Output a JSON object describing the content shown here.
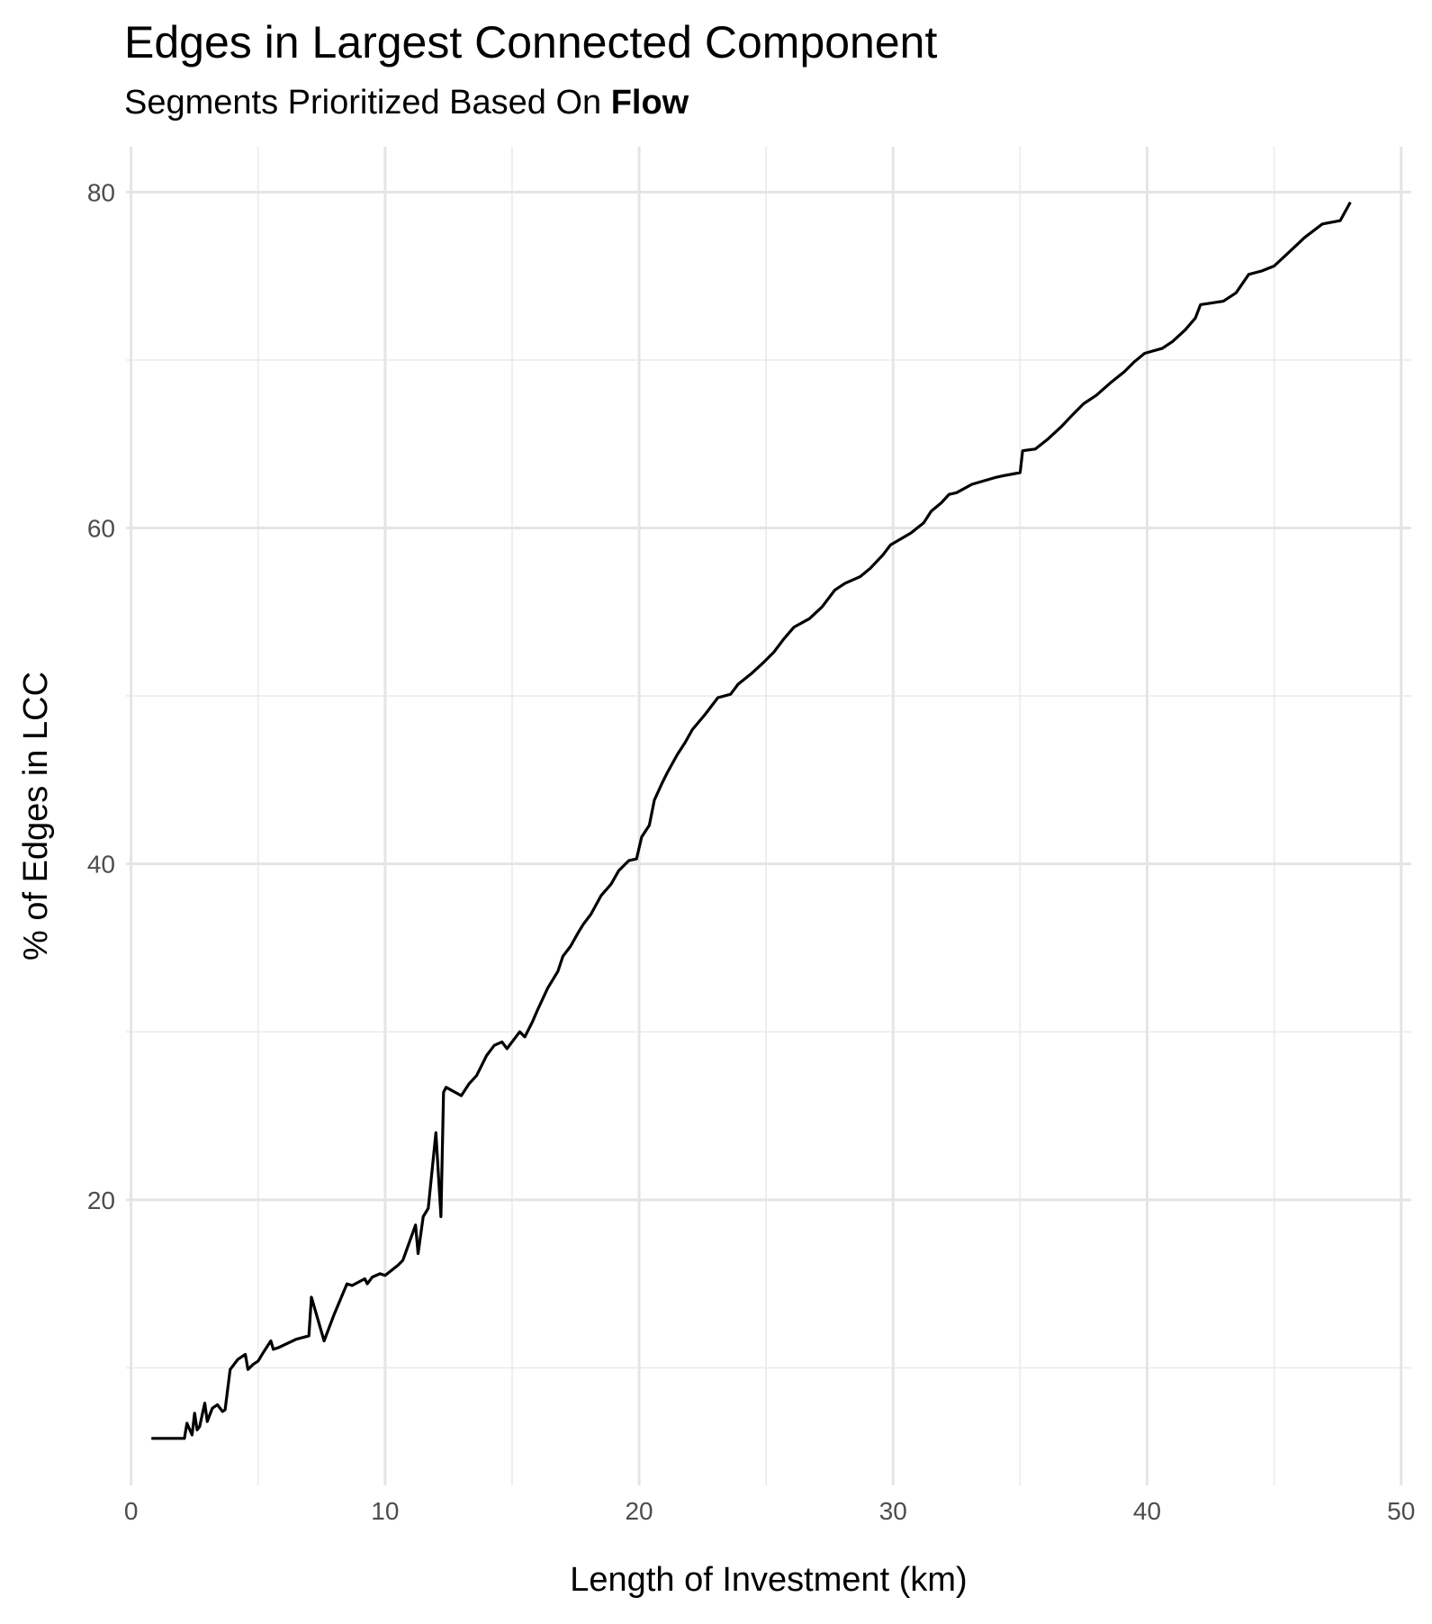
{
  "chart_data": {
    "type": "line",
    "title": "Edges in Largest Connected Component",
    "subtitle": {
      "prefix": "Segments Prioritized Based On ",
      "emphasis": "Flow"
    },
    "xlabel": "Length of Investment (km)",
    "ylabel": "% of Edges in LCC",
    "xlim": [
      -0.2,
      50.4
    ],
    "ylim": [
      3.0,
      82.7
    ],
    "xticks": [
      0,
      10,
      20,
      30,
      40,
      50
    ],
    "yticks": [
      20,
      40,
      60,
      80
    ],
    "grid": true,
    "legend": "none",
    "line_color": "#000000",
    "series": [
      {
        "x": [
          0.8,
          1.6,
          2.1,
          2.2,
          2.4,
          2.5,
          2.6,
          2.7,
          2.9,
          3.0,
          3.1,
          3.2,
          3.4,
          3.6,
          3.7,
          3.9,
          4.2,
          4.5,
          4.6,
          4.8,
          5.0,
          5.2,
          5.5,
          5.6,
          5.8,
          6.5,
          7.0,
          7.1,
          7.6,
          8.0,
          8.5,
          8.7,
          9.2,
          9.3,
          9.5,
          9.8,
          10.0,
          10.5,
          10.7,
          11.2,
          11.3,
          11.5,
          11.7,
          12.0,
          12.2,
          12.3,
          12.4,
          13.0,
          13.3,
          13.6,
          14.0,
          14.3,
          14.6,
          14.8,
          15.3,
          15.5,
          15.8,
          16.0,
          16.4,
          16.8,
          17.0,
          17.3,
          17.6,
          17.8,
          18.1,
          18.5,
          18.9,
          19.2,
          19.6,
          19.9,
          20.1,
          20.4,
          20.6,
          20.9,
          21.1,
          21.5,
          21.8,
          22.1,
          22.6,
          23.1,
          23.6,
          23.9,
          24.4,
          24.9,
          25.3,
          25.7,
          26.1,
          26.7,
          27.2,
          27.7,
          28.1,
          28.7,
          29.1,
          29.6,
          29.9,
          30.7,
          31.2,
          31.5,
          31.9,
          32.2,
          32.5,
          33.1,
          34.0,
          34.3,
          35.0,
          35.1,
          35.6,
          36.1,
          36.6,
          37.1,
          37.5,
          38.0,
          38.6,
          39.1,
          39.5,
          39.9,
          40.6,
          41.0,
          41.5,
          41.9,
          42.1,
          43.0,
          43.5,
          44.0,
          44.5,
          45.0,
          45.5,
          46.2,
          46.9,
          47.6,
          48.0
        ],
        "y": [
          5.8,
          5.8,
          5.8,
          6.7,
          6.0,
          7.3,
          6.3,
          6.5,
          7.9,
          6.8,
          7.2,
          7.6,
          7.8,
          7.4,
          7.5,
          9.9,
          10.5,
          10.8,
          9.9,
          10.2,
          10.4,
          10.9,
          11.6,
          11.1,
          11.2,
          11.7,
          11.9,
          14.2,
          11.6,
          13.2,
          15.0,
          14.9,
          15.3,
          15.0,
          15.4,
          15.6,
          15.5,
          16.1,
          16.4,
          18.5,
          16.8,
          19.0,
          19.5,
          24.0,
          19.0,
          26.4,
          26.7,
          26.2,
          26.9,
          27.4,
          28.6,
          29.2,
          29.4,
          29.0,
          30.0,
          29.7,
          30.6,
          31.3,
          32.6,
          33.6,
          34.5,
          35.1,
          35.9,
          36.4,
          37.0,
          38.1,
          38.8,
          39.6,
          40.2,
          40.3,
          41.6,
          42.3,
          43.8,
          44.8,
          45.4,
          46.5,
          47.2,
          48.0,
          48.9,
          49.9,
          50.1,
          50.7,
          51.3,
          52.0,
          52.6,
          53.4,
          54.1,
          54.6,
          55.3,
          56.3,
          56.7,
          57.1,
          57.6,
          58.4,
          59.0,
          59.7,
          60.3,
          61.0,
          61.5,
          62.0,
          62.1,
          62.6,
          63.0,
          63.1,
          63.3,
          64.6,
          64.7,
          65.3,
          66.0,
          66.8,
          67.4,
          67.9,
          68.7,
          69.3,
          69.9,
          70.4,
          70.7,
          71.1,
          71.8,
          72.5,
          73.3,
          73.5,
          74.0,
          75.1,
          75.3,
          75.6,
          76.3,
          77.3,
          78.1,
          78.3,
          79.4
        ]
      }
    ]
  }
}
